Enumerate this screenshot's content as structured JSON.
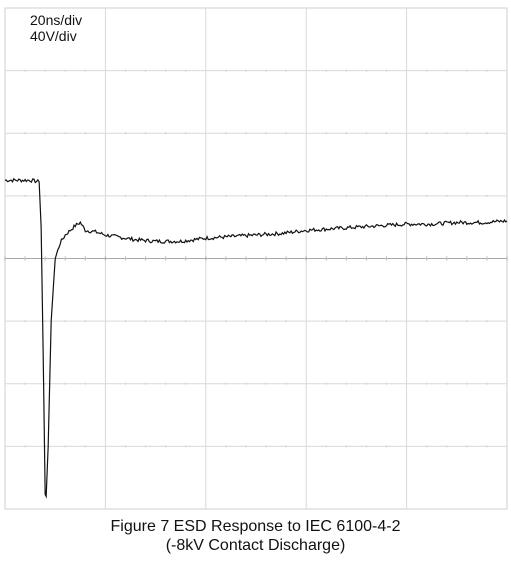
{
  "figure": {
    "caption_line1": "Figure 7 ESD Response to IEC 6100-4-2",
    "caption_line2": "(-8kV Contact Discharge)"
  },
  "chart_data": {
    "type": "line",
    "timebase_label": "20ns/div",
    "voltscale_label": "40V/div",
    "divisions": {
      "x": 5,
      "y": 8
    },
    "xlim": [
      0,
      100
    ],
    "ylim": [
      -160,
      160
    ],
    "x_units": "ns",
    "y_units": "V",
    "grid": true,
    "series": [
      {
        "x": [
          0,
          5,
          6.8,
          7.2,
          7.6,
          8.0,
          8.2,
          8.6,
          9.2,
          10,
          11,
          12,
          13,
          14,
          15,
          16,
          18,
          20,
          22,
          26,
          30,
          35,
          40,
          45,
          50,
          55,
          60,
          65,
          70,
          75,
          80,
          85,
          90,
          95,
          100
        ],
        "y": [
          50,
          50,
          49,
          20,
          -60,
          -150,
          -152,
          -120,
          -40,
          0,
          10,
          15,
          18,
          21,
          23,
          18,
          17,
          15,
          14,
          12,
          11,
          11,
          13,
          14,
          15,
          16,
          18,
          19,
          20,
          21,
          22,
          22,
          23,
          23,
          24
        ]
      }
    ]
  }
}
